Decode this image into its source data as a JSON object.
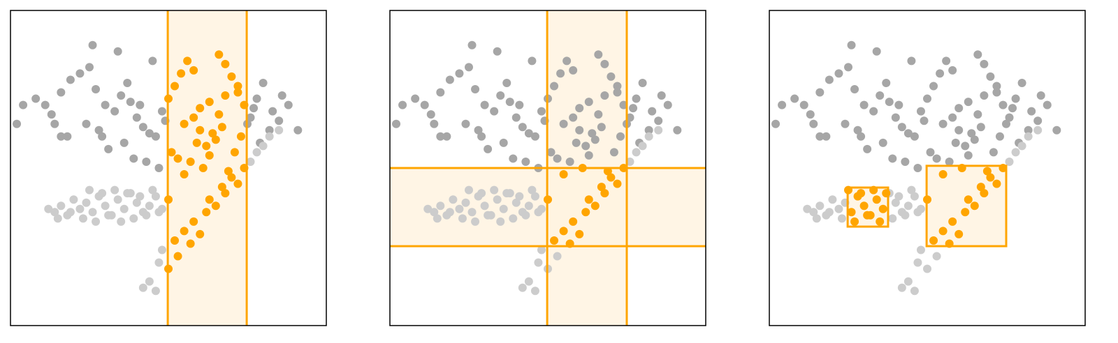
{
  "chart_data": {
    "type": "scatter",
    "xlim": [
      0,
      100
    ],
    "ylim": [
      0,
      100
    ],
    "highlight_color": "#ffa500",
    "brush_fill": "#fff3e0",
    "series": [
      {
        "color": "#a6a6a6",
        "x": [
          4,
          2,
          14,
          11,
          16,
          19,
          22,
          25,
          27,
          30,
          33,
          35,
          37,
          40,
          42,
          44,
          46,
          48,
          50,
          52,
          54,
          56,
          58,
          60,
          62,
          64,
          66,
          68,
          70,
          72,
          74,
          76,
          78,
          80,
          83,
          86,
          88,
          91,
          8,
          13,
          18,
          24,
          29,
          31,
          36,
          39,
          43,
          47,
          51,
          53,
          55,
          57,
          59,
          61,
          63,
          65,
          67,
          69,
          71,
          73,
          75,
          77,
          79,
          82,
          85,
          26,
          34,
          45,
          58,
          66,
          72,
          38,
          49,
          60,
          68,
          16,
          28,
          41,
          55,
          63
        ],
        "values": [
          70,
          64,
          64,
          70,
          74,
          78,
          80,
          82,
          75,
          70,
          68,
          73,
          77,
          66,
          63,
          61,
          60,
          68,
          72,
          76,
          80,
          84,
          66,
          62,
          57,
          61,
          67,
          73,
          79,
          74,
          70,
          66,
          72,
          77,
          68,
          73,
          70,
          62,
          72,
          67,
          60,
          64,
          60,
          56,
          58,
          53,
          52,
          50,
          55,
          53,
          48,
          52,
          58,
          50,
          54,
          59,
          63,
          49,
          55,
          60,
          64,
          69,
          58,
          62,
          65,
          89,
          87,
          84,
          81,
          86,
          76,
          71,
          65,
          69,
          83,
          60,
          62,
          70,
          64,
          71
        ]
      },
      {
        "color": "#cccccc",
        "x": [
          12,
          14,
          16,
          18,
          20,
          22,
          24,
          26,
          28,
          30,
          32,
          34,
          36,
          38,
          40,
          42,
          44,
          46,
          48,
          50,
          15,
          19,
          23,
          27,
          31,
          35,
          39,
          43,
          47,
          25,
          29,
          33,
          37,
          41,
          45,
          42,
          44,
          46,
          47,
          48,
          50,
          52,
          53,
          55,
          57,
          58,
          60,
          62,
          63,
          65,
          67,
          68,
          70,
          72,
          74,
          76,
          78,
          80,
          82,
          85
        ],
        "values": [
          37,
          36,
          38,
          35,
          40,
          37,
          39,
          36,
          41,
          38,
          35,
          40,
          37,
          42,
          39,
          36,
          38,
          41,
          37,
          40,
          34,
          36,
          34,
          33,
          35,
          33,
          34,
          35,
          36,
          43,
          42,
          43,
          42,
          41,
          43,
          12,
          14,
          11,
          20,
          24,
          18,
          27,
          22,
          30,
          26,
          33,
          29,
          36,
          40,
          38,
          44,
          42,
          47,
          45,
          50,
          52,
          55,
          57,
          60,
          62
        ]
      }
    ],
    "panels": [
      {
        "combine": "and",
        "brushes": [
          {
            "x": [
              49.8,
              74.8
            ]
          }
        ]
      },
      {
        "combine": "and",
        "brushes": [
          {
            "x": [
              49.8,
              75
            ]
          },
          {
            "y": [
              25.2,
              50
            ]
          }
        ]
      },
      {
        "combine": "or",
        "brushes": [
          {
            "x": [
              24.8,
              37.6
            ],
            "y": [
              31.4,
              43.8
            ]
          },
          {
            "x": [
              49.8,
              75
            ],
            "y": [
              25.2,
              50.7
            ]
          }
        ]
      }
    ]
  }
}
